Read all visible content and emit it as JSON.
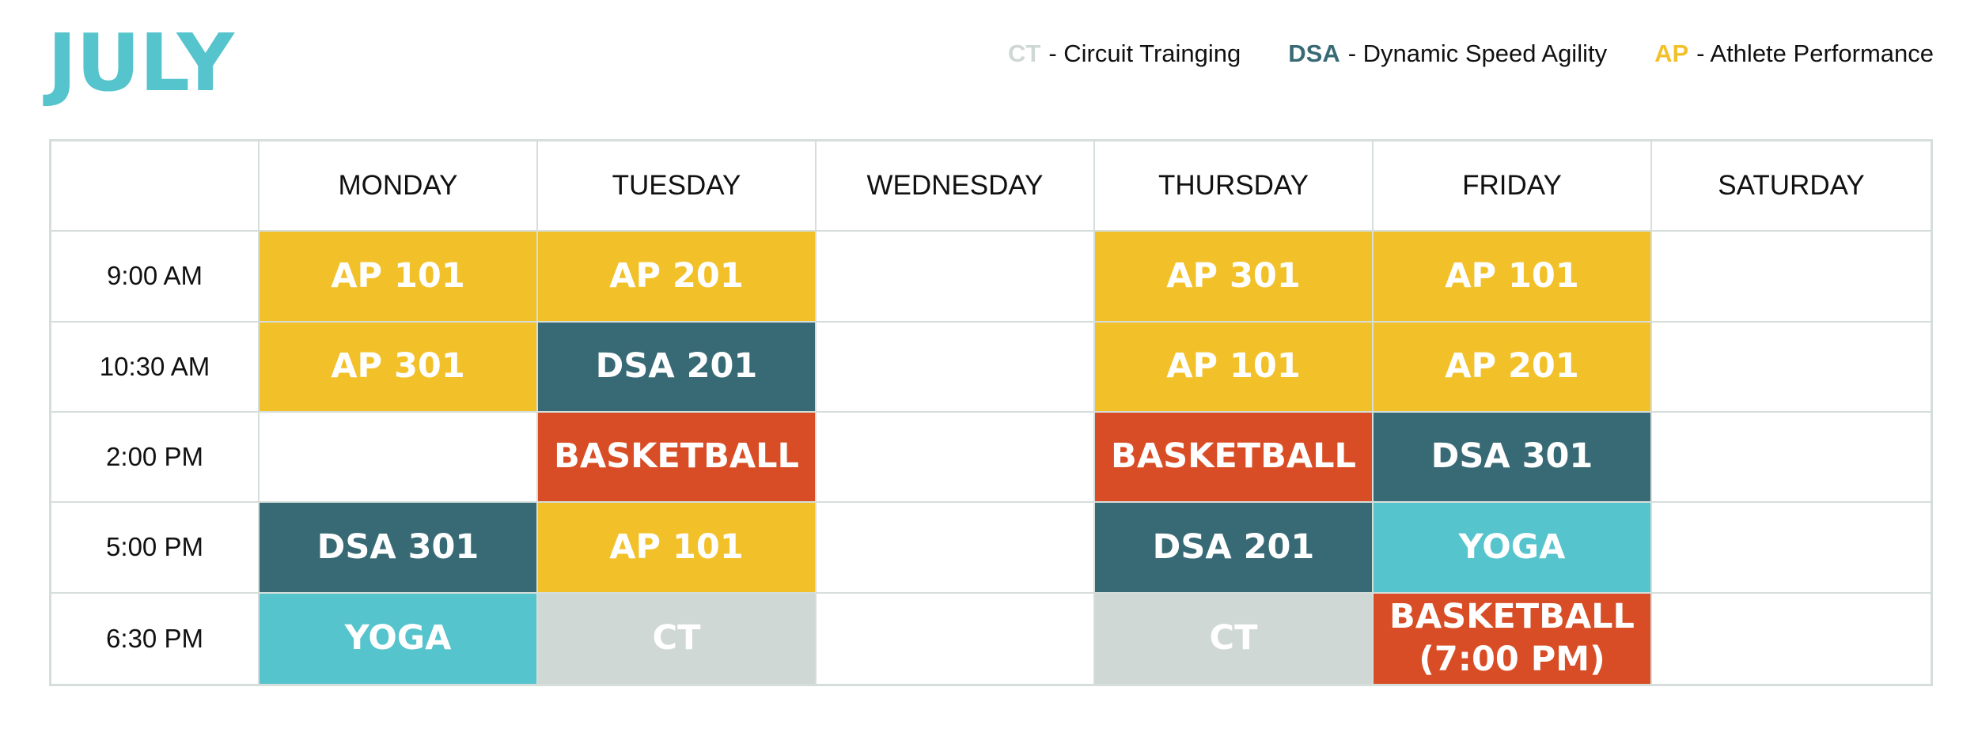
{
  "title": "JULY",
  "legend": [
    {
      "abbr": "CT",
      "text": "- Circuit Trainging"
    },
    {
      "abbr": "DSA",
      "text": "- Dynamic Speed Agility"
    },
    {
      "abbr": "AP",
      "text": "- Athlete Performance"
    }
  ],
  "days": [
    "MONDAY",
    "TUESDAY",
    "WEDNESDAY",
    "THURSDAY",
    "FRIDAY",
    "SATURDAY"
  ],
  "rows": [
    {
      "time": "9:00 AM",
      "cells": [
        "AP 101",
        "AP 201",
        "",
        "AP 301",
        "AP 101",
        ""
      ]
    },
    {
      "time": "10:30 AM",
      "cells": [
        "AP 301",
        "DSA 201",
        "",
        "AP 101",
        "AP 201",
        ""
      ]
    },
    {
      "time": "2:00 PM",
      "cells": [
        "",
        "BASKETBALL",
        "",
        "BASKETBALL",
        "DSA 301",
        ""
      ]
    },
    {
      "time": "5:00 PM",
      "cells": [
        "DSA 301",
        "AP 101",
        "",
        "DSA 201",
        "YOGA",
        ""
      ]
    },
    {
      "time": "6:30 PM",
      "cells": [
        "YOGA",
        "CT",
        "",
        "CT",
        "BASKETBALL (7:00 PM)",
        ""
      ]
    }
  ],
  "colors": {
    "title": "#55c4cc",
    "AP": "#f2c12a",
    "DSA": "#386a75",
    "BASKETBALL": "#d84d25",
    "YOGA": "#55c4cc",
    "CT": "#cfd8d4",
    "grid": "#d6dedb"
  }
}
